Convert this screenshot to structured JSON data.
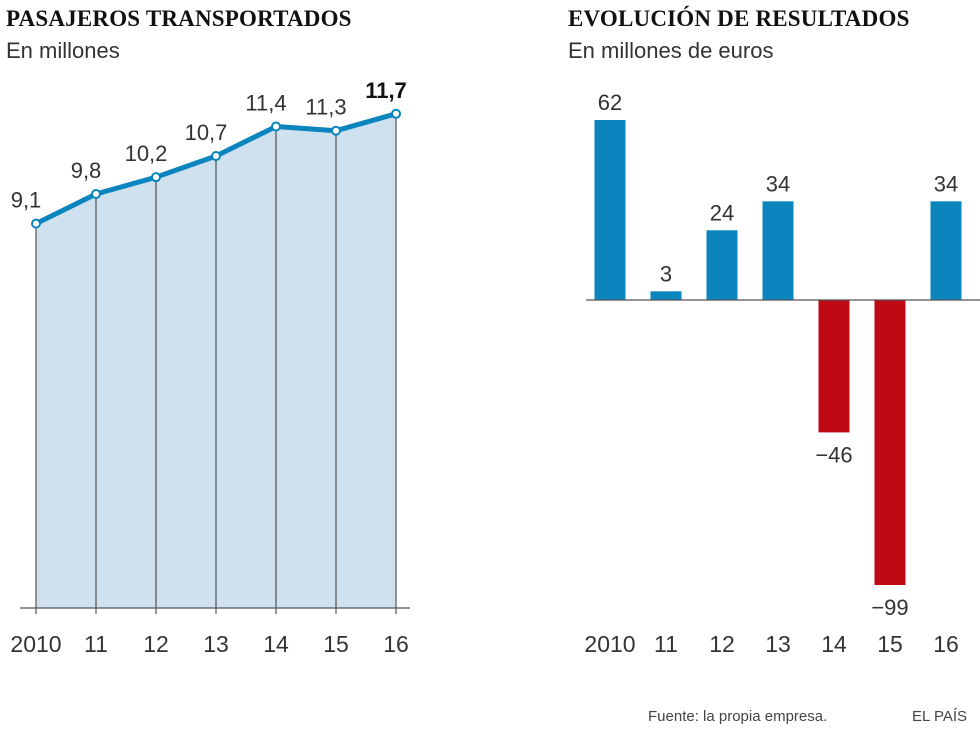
{
  "chart_data": [
    {
      "type": "area",
      "title": "PASAJEROS TRANSPORTADOS",
      "subtitle": "En millones",
      "categories": [
        "2010",
        "11",
        "12",
        "13",
        "14",
        "15",
        "16"
      ],
      "value_labels": [
        "9,1",
        "9,8",
        "10,2",
        "10,7",
        "11,4",
        "11,3",
        "11,7"
      ],
      "values": [
        9.1,
        9.8,
        10.2,
        10.7,
        11.4,
        11.3,
        11.7
      ],
      "ylim": [
        0,
        12.5
      ],
      "highlight_last": true
    },
    {
      "type": "bar",
      "title": "EVOLUCIÓN DE RESULTADOS",
      "subtitle": "En millones de euros",
      "categories": [
        "2010",
        "11",
        "12",
        "13",
        "14",
        "15",
        "16"
      ],
      "value_labels": [
        "62",
        "3",
        "24",
        "34",
        "−46",
        "−99",
        "34"
      ],
      "values": [
        62,
        3,
        24,
        34,
        -46,
        -99,
        34
      ],
      "ylim": [
        -99,
        62
      ]
    }
  ],
  "footer": {
    "source": "Fuente: la propia empresa.",
    "brand": "EL PAÍS"
  },
  "colors": {
    "line": "#0a85bd",
    "area": "#cfe1ef",
    "positive": "#0a85bd",
    "negative": "#bf0a13",
    "axis": "#555555"
  }
}
